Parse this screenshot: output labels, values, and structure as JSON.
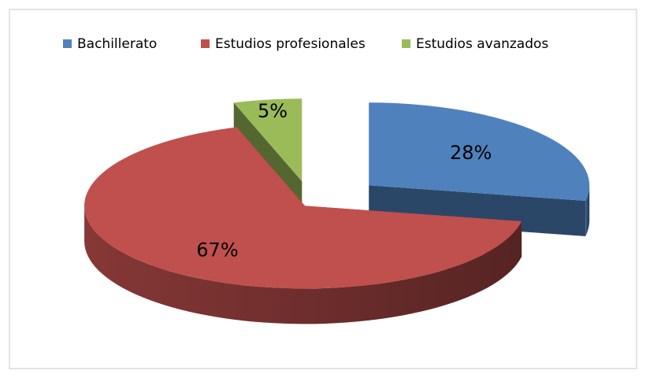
{
  "chart_data": {
    "type": "pie",
    "categories": [
      "Bachillerato",
      "Estudios profesionales",
      "Estudios avanzados"
    ],
    "values": [
      28,
      67,
      5
    ],
    "value_labels": [
      "28%",
      "67%",
      "5%"
    ],
    "colors": [
      "#4f81bd",
      "#c0504d",
      "#9bbb59"
    ],
    "legend": "top"
  }
}
